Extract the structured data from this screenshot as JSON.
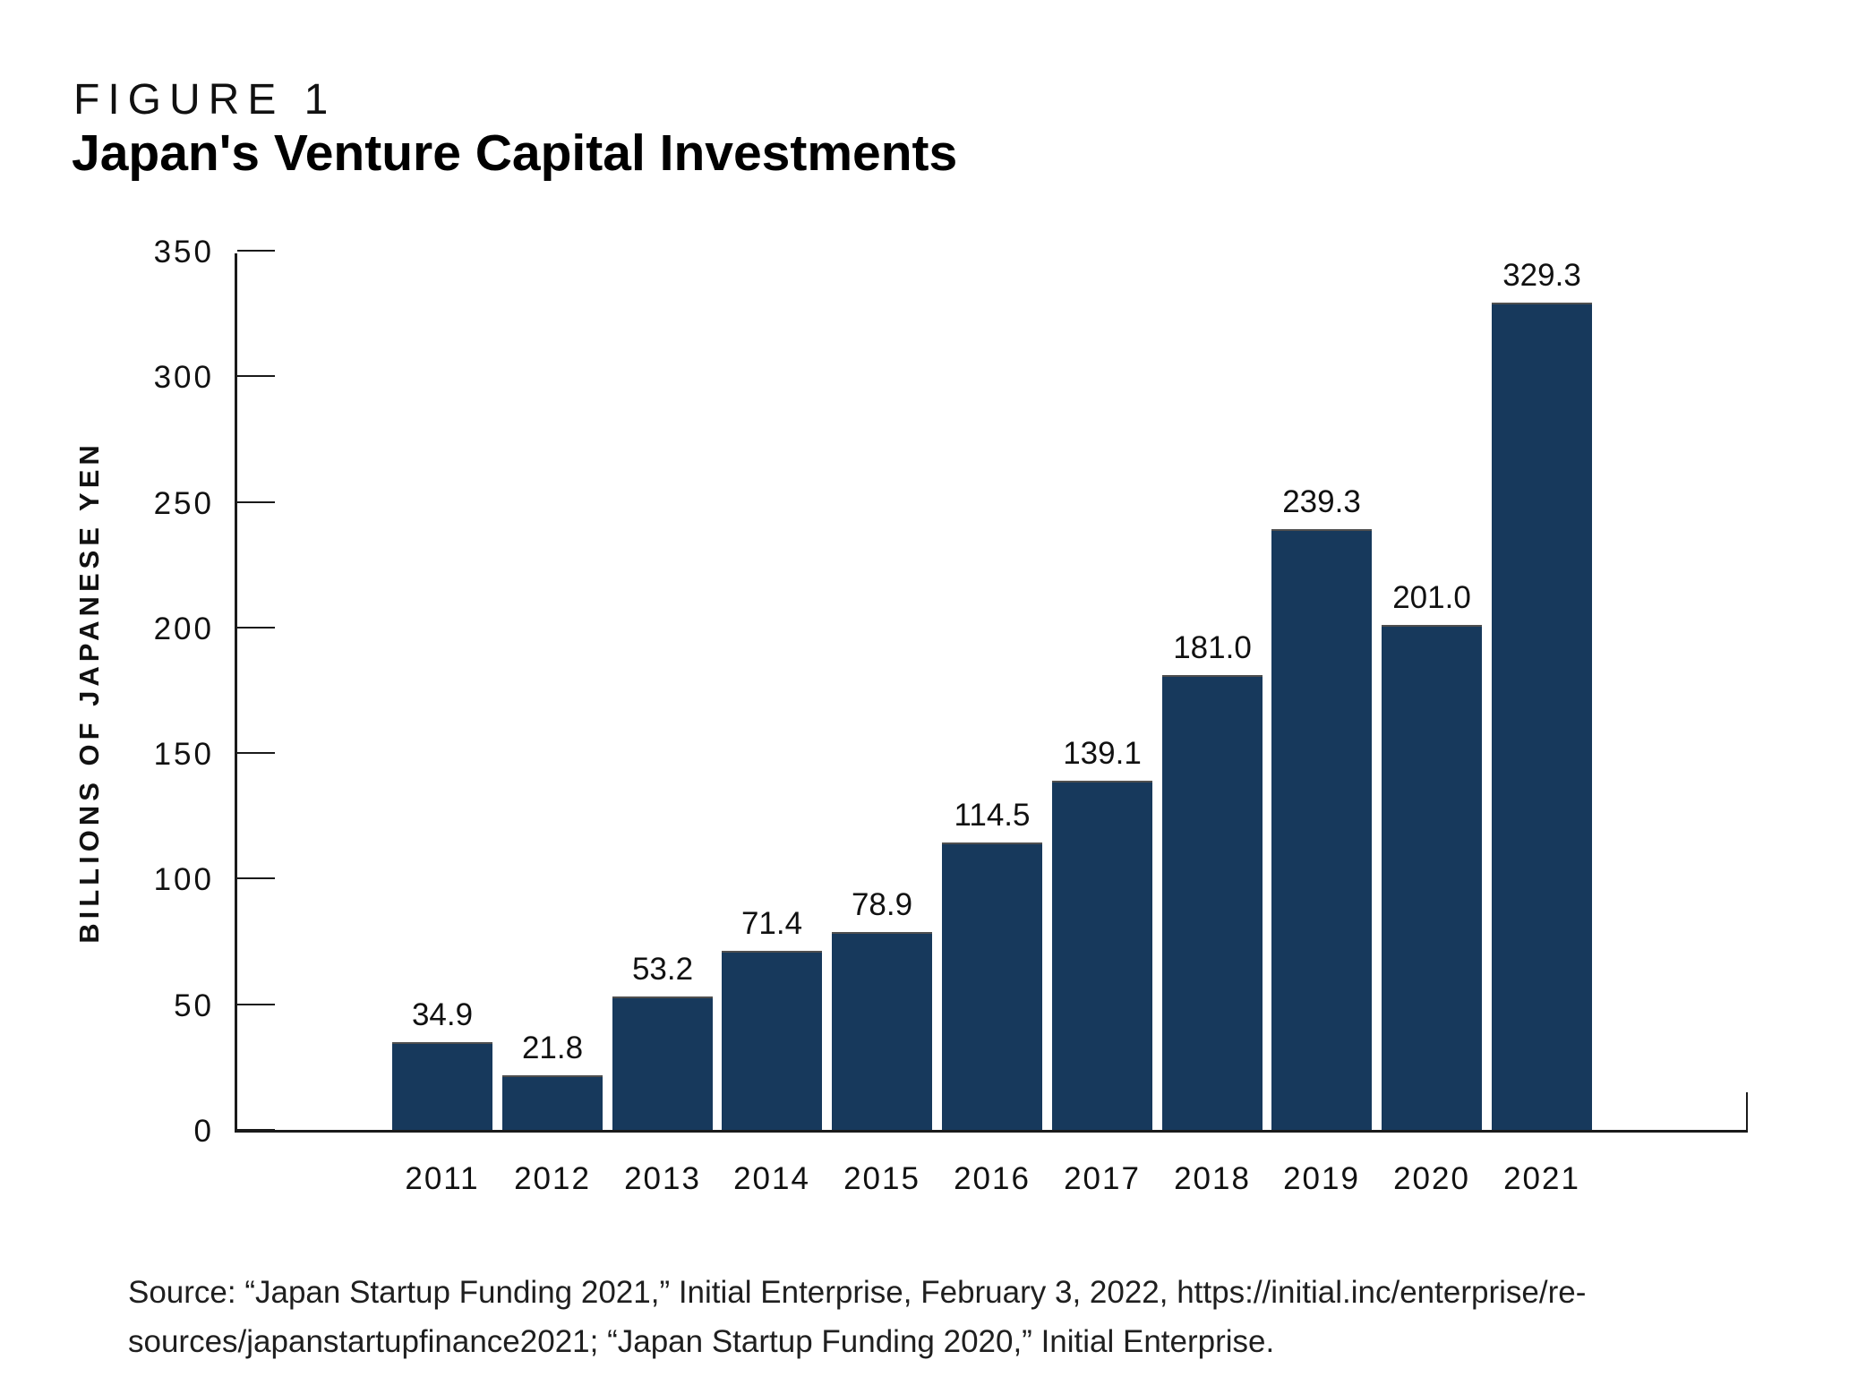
{
  "figure": {
    "label": "FIGURE 1",
    "title": "Japan's Venture Capital Investments"
  },
  "chart_data": {
    "type": "bar",
    "title": "Japan's Venture Capital Investments",
    "categories": [
      "2011",
      "2012",
      "2013",
      "2014",
      "2015",
      "2016",
      "2017",
      "2018",
      "2019",
      "2020",
      "2021"
    ],
    "values": [
      34.9,
      21.8,
      53.2,
      71.4,
      78.9,
      114.5,
      139.1,
      181.0,
      239.3,
      201.0,
      329.3
    ],
    "value_labels": [
      "34.9",
      "21.8",
      "53.2",
      "71.4",
      "78.9",
      "114.5",
      "139.1",
      "181.0",
      "239.3",
      "201.0",
      "329.3"
    ],
    "xlabel": "",
    "ylabel": "BILLIONS OF JAPANESE YEN",
    "ylim": [
      0,
      350
    ],
    "yticks": [
      0,
      50,
      100,
      150,
      200,
      250,
      300,
      350
    ],
    "grid": false,
    "legend": "none",
    "bar_color": "#17395c",
    "bar_top_edge_color": "#4f4f4f",
    "axis_color": "#1a1a1a"
  },
  "source": {
    "line1": "Source: “Japan Startup Funding 2021,” Initial Enterprise, February 3, 2022, https://initial.inc/enterprise/re-",
    "line2": "sources/japanstartupfinance2021; “Japan Startup Funding 2020,” Initial Enterprise."
  }
}
